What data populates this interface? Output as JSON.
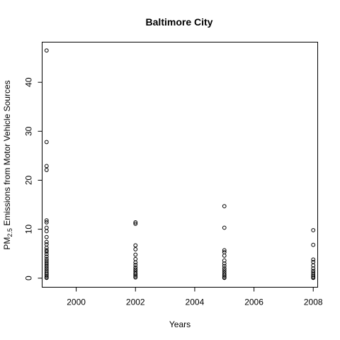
{
  "chart_data": {
    "type": "scatter",
    "title": "Baltimore City",
    "xlabel": "Years",
    "ylabel_prefix": "PM",
    "ylabel_sub": "2.5",
    "ylabel_suffix": " Emissions from Motor Vehicle Sources",
    "xlim": [
      1998.85,
      2008.15
    ],
    "ylim": [
      -1.85,
      48.2
    ],
    "xticks": [
      2000,
      2002,
      2004,
      2006,
      2008
    ],
    "yticks": [
      0,
      10,
      20,
      30,
      40
    ],
    "grid": false,
    "points": [
      {
        "x": 1999,
        "y": 46.5
      },
      {
        "x": 1999,
        "y": 27.8
      },
      {
        "x": 1999,
        "y": 22.9
      },
      {
        "x": 1999,
        "y": 22.1
      },
      {
        "x": 1999,
        "y": 11.8
      },
      {
        "x": 1999,
        "y": 11.4
      },
      {
        "x": 1999,
        "y": 10.3
      },
      {
        "x": 1999,
        "y": 9.6
      },
      {
        "x": 1999,
        "y": 8.4
      },
      {
        "x": 1999,
        "y": 7.4
      },
      {
        "x": 1999,
        "y": 6.9
      },
      {
        "x": 1999,
        "y": 6.2
      },
      {
        "x": 1999,
        "y": 5.7
      },
      {
        "x": 1999,
        "y": 5.4
      },
      {
        "x": 1999,
        "y": 4.9
      },
      {
        "x": 1999,
        "y": 4.4
      },
      {
        "x": 1999,
        "y": 3.9
      },
      {
        "x": 1999,
        "y": 3.5
      },
      {
        "x": 1999,
        "y": 3.1
      },
      {
        "x": 1999,
        "y": 2.7
      },
      {
        "x": 1999,
        "y": 2.3
      },
      {
        "x": 1999,
        "y": 1.9
      },
      {
        "x": 1999,
        "y": 1.5
      },
      {
        "x": 1999,
        "y": 1.1
      },
      {
        "x": 1999,
        "y": 0.8
      },
      {
        "x": 1999,
        "y": 0.5
      },
      {
        "x": 1999,
        "y": 0.2
      },
      {
        "x": 1999,
        "y": 0.05
      },
      {
        "x": 2002,
        "y": 11.4
      },
      {
        "x": 2002,
        "y": 11.1
      },
      {
        "x": 2002,
        "y": 6.7
      },
      {
        "x": 2002,
        "y": 5.9
      },
      {
        "x": 2002,
        "y": 4.8
      },
      {
        "x": 2002,
        "y": 3.9
      },
      {
        "x": 2002,
        "y": 3.2
      },
      {
        "x": 2002,
        "y": 2.7
      },
      {
        "x": 2002,
        "y": 2.2
      },
      {
        "x": 2002,
        "y": 1.8
      },
      {
        "x": 2002,
        "y": 1.4
      },
      {
        "x": 2002,
        "y": 1.0
      },
      {
        "x": 2002,
        "y": 0.7
      },
      {
        "x": 2002,
        "y": 0.4
      },
      {
        "x": 2002,
        "y": 0.15
      },
      {
        "x": 2005,
        "y": 14.7
      },
      {
        "x": 2005,
        "y": 10.3
      },
      {
        "x": 2005,
        "y": 5.7
      },
      {
        "x": 2005,
        "y": 5.3
      },
      {
        "x": 2005,
        "y": 4.6
      },
      {
        "x": 2005,
        "y": 3.6
      },
      {
        "x": 2005,
        "y": 3.0
      },
      {
        "x": 2005,
        "y": 2.5
      },
      {
        "x": 2005,
        "y": 2.0
      },
      {
        "x": 2005,
        "y": 1.6
      },
      {
        "x": 2005,
        "y": 1.2
      },
      {
        "x": 2005,
        "y": 0.8
      },
      {
        "x": 2005,
        "y": 0.5
      },
      {
        "x": 2005,
        "y": 0.2
      },
      {
        "x": 2005,
        "y": 0.05
      },
      {
        "x": 2008,
        "y": 9.8
      },
      {
        "x": 2008,
        "y": 6.8
      },
      {
        "x": 2008,
        "y": 3.8
      },
      {
        "x": 2008,
        "y": 3.3
      },
      {
        "x": 2008,
        "y": 2.6
      },
      {
        "x": 2008,
        "y": 2.0
      },
      {
        "x": 2008,
        "y": 1.5
      },
      {
        "x": 2008,
        "y": 1.1
      },
      {
        "x": 2008,
        "y": 0.7
      },
      {
        "x": 2008,
        "y": 0.4
      },
      {
        "x": 2008,
        "y": 0.15
      },
      {
        "x": 2008,
        "y": 0.05
      }
    ]
  }
}
